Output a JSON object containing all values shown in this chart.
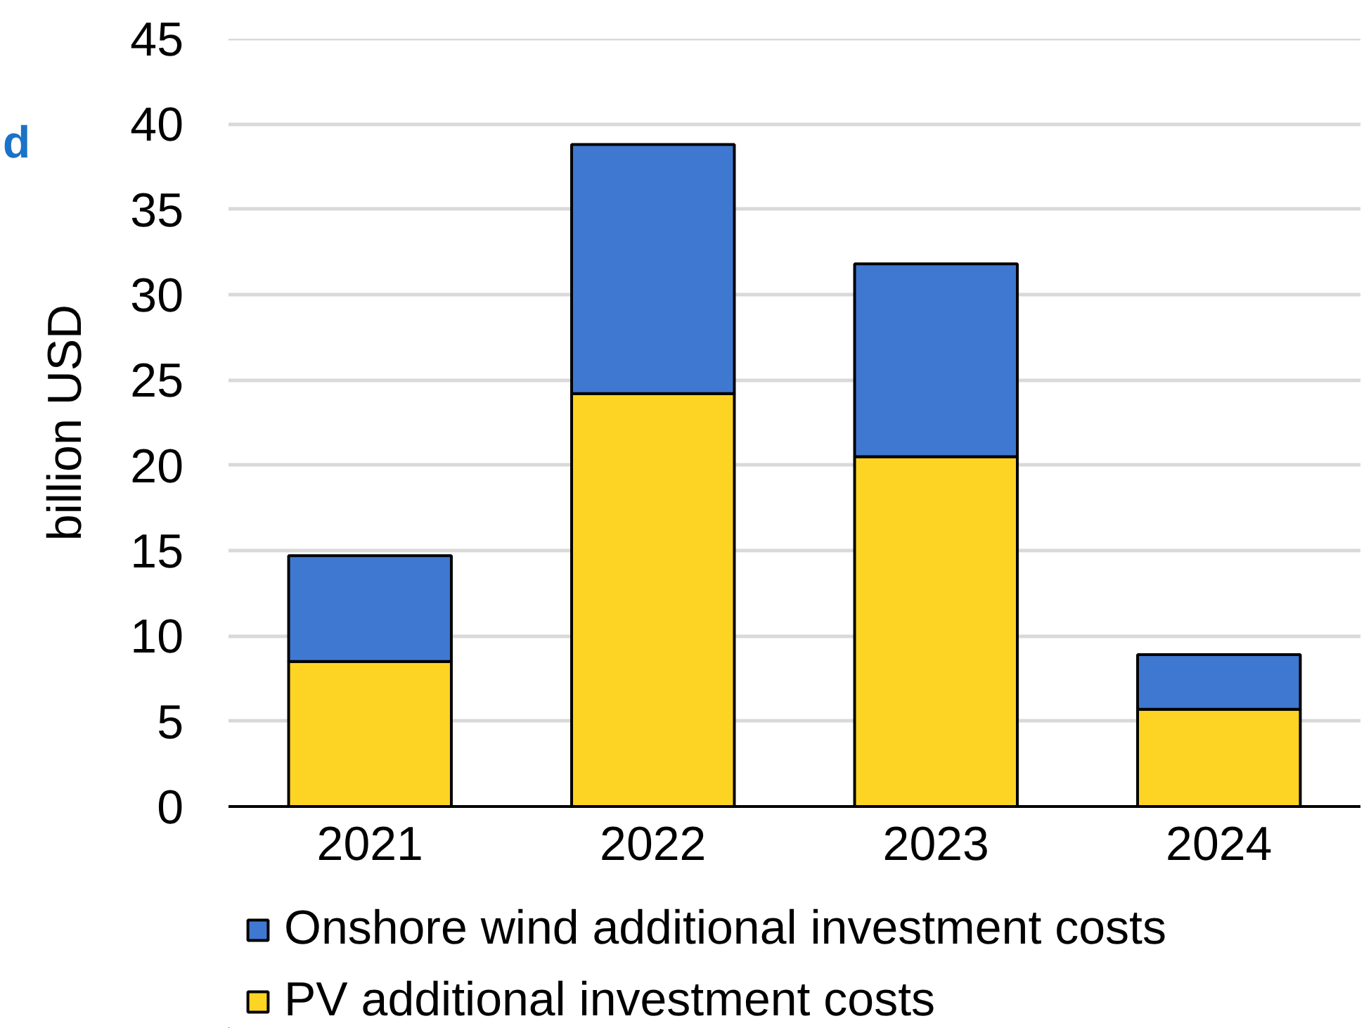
{
  "chart_data": {
    "type": "bar",
    "ylabel": "billion USD",
    "categories": [
      "2021",
      "2022",
      "2023",
      "2024"
    ],
    "stacked": true,
    "series": [
      {
        "name": "PV additional investment costs",
        "color": "#fdd424",
        "values": [
          8.5,
          24.2,
          20.5,
          5.7
        ]
      },
      {
        "name": "Onshore wind additional investment costs",
        "color": "#3f78d1",
        "values": [
          6.2,
          14.6,
          11.3,
          3.2
        ]
      }
    ],
    "ylim": [
      0,
      45
    ],
    "yticks": [
      0,
      5,
      10,
      15,
      20,
      25,
      30,
      35,
      40,
      45
    ],
    "grid": "y",
    "legend": "bottom",
    "annotations": [
      "d"
    ]
  }
}
